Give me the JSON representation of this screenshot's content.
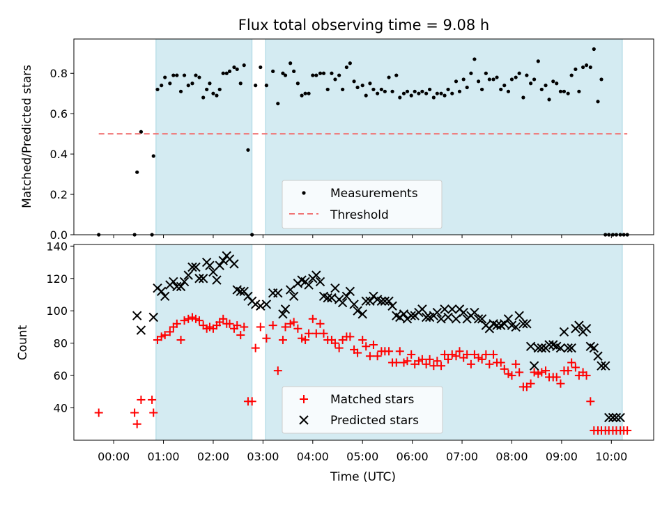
{
  "chart_data": [
    {
      "type": "scatter",
      "title": "Flux total observing time = 9.08 h",
      "ylabel": "Matched/Predicted stars",
      "xlabel": "",
      "xlim": [
        -0.8,
        10.85
      ],
      "ylim": [
        0,
        0.97
      ],
      "yticks": [
        0,
        0.2,
        0.4,
        0.6,
        0.8
      ],
      "ytick_labels": [
        "0.0",
        "0.2",
        "0.4",
        "0.6",
        "0.8"
      ],
      "shaded_spans": [
        [
          0.85,
          2.78
        ],
        [
          3.05,
          10.22
        ]
      ],
      "legend_position": "lower-center",
      "series": [
        {
          "name": "Measurements",
          "marker": "dot",
          "color": "#000000",
          "x": [
            -0.3,
            0.42,
            0.47,
            0.55,
            0.77,
            0.8,
            0.88,
            0.96,
            1.03,
            1.13,
            1.2,
            1.27,
            1.35,
            1.42,
            1.5,
            1.58,
            1.65,
            1.72,
            1.8,
            1.87,
            1.93,
            2.0,
            2.07,
            2.13,
            2.2,
            2.27,
            2.33,
            2.42,
            2.48,
            2.55,
            2.62,
            2.7,
            2.78,
            2.85,
            2.95,
            3.07,
            3.2,
            3.3,
            3.4,
            3.45,
            3.55,
            3.62,
            3.7,
            3.78,
            3.85,
            3.92,
            4.0,
            4.07,
            4.15,
            4.22,
            4.3,
            4.38,
            4.45,
            4.53,
            4.6,
            4.68,
            4.75,
            4.83,
            4.9,
            5.0,
            5.07,
            5.15,
            5.22,
            5.3,
            5.38,
            5.45,
            5.53,
            5.6,
            5.68,
            5.75,
            5.83,
            5.9,
            5.98,
            6.05,
            6.13,
            6.2,
            6.28,
            6.35,
            6.43,
            6.5,
            6.58,
            6.65,
            6.72,
            6.8,
            6.88,
            6.95,
            7.03,
            7.1,
            7.18,
            7.25,
            7.33,
            7.4,
            7.48,
            7.55,
            7.63,
            7.7,
            7.78,
            7.85,
            7.93,
            8.0,
            8.08,
            8.15,
            8.23,
            8.3,
            8.38,
            8.45,
            8.53,
            8.6,
            8.68,
            8.75,
            8.83,
            8.9,
            8.98,
            9.05,
            9.13,
            9.2,
            9.28,
            9.35,
            9.43,
            9.5,
            9.58,
            9.65,
            9.73,
            9.8,
            9.88,
            9.95,
            10.03,
            10.1,
            10.18,
            10.25,
            10.32
          ],
          "y": [
            0.0,
            0.0,
            0.31,
            0.51,
            0.0,
            0.39,
            0.72,
            0.74,
            0.78,
            0.75,
            0.79,
            0.79,
            0.71,
            0.79,
            0.74,
            0.75,
            0.79,
            0.78,
            0.68,
            0.72,
            0.75,
            0.7,
            0.69,
            0.72,
            0.8,
            0.8,
            0.81,
            0.83,
            0.82,
            0.75,
            0.84,
            0.42,
            0.0,
            0.74,
            0.83,
            0.74,
            0.81,
            0.65,
            0.8,
            0.79,
            0.85,
            0.81,
            0.75,
            0.69,
            0.7,
            0.7,
            0.79,
            0.79,
            0.8,
            0.8,
            0.72,
            0.8,
            0.77,
            0.79,
            0.72,
            0.83,
            0.85,
            0.76,
            0.73,
            0.74,
            0.69,
            0.75,
            0.72,
            0.7,
            0.72,
            0.71,
            0.78,
            0.71,
            0.79,
            0.68,
            0.7,
            0.71,
            0.69,
            0.71,
            0.7,
            0.71,
            0.7,
            0.72,
            0.68,
            0.7,
            0.7,
            0.69,
            0.72,
            0.7,
            0.76,
            0.71,
            0.77,
            0.73,
            0.8,
            0.87,
            0.76,
            0.72,
            0.8,
            0.77,
            0.77,
            0.78,
            0.72,
            0.74,
            0.71,
            0.77,
            0.78,
            0.8,
            0.68,
            0.79,
            0.75,
            0.77,
            0.86,
            0.72,
            0.74,
            0.67,
            0.76,
            0.75,
            0.71,
            0.71,
            0.7,
            0.79,
            0.82,
            0.71,
            0.83,
            0.84,
            0.83,
            0.92,
            0.66,
            0.77,
            0.0,
            0.0,
            0.0,
            0.0,
            0.0,
            0.0,
            0.0
          ],
          "size": 2.6
        },
        {
          "name": "Threshold",
          "type": "line",
          "style": "dashed",
          "color": "#f07474",
          "x": [
            -0.3,
            10.32
          ],
          "y": [
            0.5,
            0.5
          ]
        }
      ]
    },
    {
      "type": "scatter",
      "title": "",
      "ylabel": "Count",
      "xlabel": "Time (UTC)",
      "xlim": [
        -0.8,
        10.85
      ],
      "ylim": [
        20,
        141
      ],
      "yticks": [
        40,
        60,
        80,
        100,
        120,
        140
      ],
      "ytick_labels": [
        "40",
        "60",
        "80",
        "100",
        "120",
        "140"
      ],
      "xticks": [
        0,
        1,
        2,
        3,
        4,
        5,
        6,
        7,
        8,
        9,
        10
      ],
      "xtick_labels": [
        "00:00",
        "01:00",
        "02:00",
        "03:00",
        "04:00",
        "05:00",
        "06:00",
        "07:00",
        "08:00",
        "09:00",
        "10:00"
      ],
      "shaded_spans": [
        [
          0.85,
          2.78
        ],
        [
          3.05,
          10.22
        ]
      ],
      "legend_position": "lower-center",
      "series": [
        {
          "name": "Matched stars",
          "marker": "plus",
          "color": "#ff0000",
          "x": [
            -0.3,
            0.42,
            0.47,
            0.55,
            0.77,
            0.8,
            0.88,
            0.96,
            1.03,
            1.13,
            1.2,
            1.27,
            1.35,
            1.42,
            1.5,
            1.58,
            1.65,
            1.72,
            1.8,
            1.87,
            1.93,
            2.0,
            2.07,
            2.13,
            2.2,
            2.27,
            2.33,
            2.42,
            2.48,
            2.55,
            2.62,
            2.7,
            2.78,
            2.85,
            2.95,
            3.07,
            3.2,
            3.3,
            3.4,
            3.45,
            3.55,
            3.62,
            3.7,
            3.78,
            3.85,
            3.92,
            4.0,
            4.07,
            4.15,
            4.22,
            4.3,
            4.38,
            4.45,
            4.53,
            4.6,
            4.68,
            4.75,
            4.83,
            4.9,
            5.0,
            5.07,
            5.15,
            5.22,
            5.3,
            5.38,
            5.45,
            5.53,
            5.6,
            5.68,
            5.75,
            5.83,
            5.9,
            5.98,
            6.05,
            6.13,
            6.2,
            6.28,
            6.35,
            6.43,
            6.5,
            6.58,
            6.65,
            6.72,
            6.8,
            6.88,
            6.95,
            7.03,
            7.1,
            7.18,
            7.25,
            7.33,
            7.4,
            7.48,
            7.55,
            7.63,
            7.7,
            7.78,
            7.85,
            7.93,
            8.0,
            8.08,
            8.15,
            8.23,
            8.3,
            8.38,
            8.45,
            8.53,
            8.6,
            8.68,
            8.75,
            8.83,
            8.9,
            8.98,
            9.05,
            9.13,
            9.2,
            9.28,
            9.35,
            9.43,
            9.5,
            9.58,
            9.65,
            9.73,
            9.8,
            9.88,
            9.95,
            10.03,
            10.1,
            10.18,
            10.25,
            10.32
          ],
          "y": [
            37,
            37,
            30,
            45,
            45,
            37,
            82,
            84,
            85,
            87,
            90,
            92,
            82,
            94,
            95,
            96,
            95,
            94,
            91,
            89,
            90,
            89,
            91,
            93,
            95,
            92,
            92,
            89,
            91,
            85,
            90,
            44,
            44,
            77,
            90,
            83,
            91,
            63,
            82,
            90,
            92,
            93,
            89,
            83,
            82,
            86,
            95,
            86,
            92,
            86,
            82,
            82,
            80,
            77,
            82,
            84,
            84,
            76,
            74,
            82,
            78,
            72,
            79,
            72,
            75,
            75,
            75,
            68,
            68,
            75,
            68,
            69,
            73,
            67,
            69,
            70,
            67,
            70,
            66,
            69,
            66,
            73,
            70,
            73,
            72,
            75,
            71,
            73,
            67,
            73,
            71,
            70,
            73,
            67,
            73,
            68,
            68,
            64,
            61,
            60,
            67,
            62,
            53,
            53,
            55,
            62,
            61,
            62,
            63,
            59,
            59,
            59,
            55,
            63,
            63,
            68,
            65,
            60,
            62,
            60,
            44,
            26,
            26,
            26,
            26,
            26,
            26,
            26,
            26,
            26,
            26
          ],
          "size": 6
        },
        {
          "name": "Predicted stars",
          "marker": "x",
          "color": "#000000",
          "x": [
            0.47,
            0.55,
            0.8,
            0.88,
            0.96,
            1.03,
            1.13,
            1.2,
            1.27,
            1.35,
            1.42,
            1.5,
            1.58,
            1.65,
            1.72,
            1.8,
            1.87,
            1.93,
            2.0,
            2.07,
            2.13,
            2.2,
            2.27,
            2.33,
            2.42,
            2.48,
            2.55,
            2.62,
            2.7,
            2.78,
            2.85,
            2.95,
            3.07,
            3.2,
            3.3,
            3.4,
            3.45,
            3.55,
            3.62,
            3.7,
            3.78,
            3.85,
            3.92,
            4.0,
            4.07,
            4.15,
            4.22,
            4.3,
            4.38,
            4.45,
            4.53,
            4.6,
            4.68,
            4.75,
            4.83,
            4.9,
            5.0,
            5.07,
            5.15,
            5.22,
            5.3,
            5.38,
            5.45,
            5.53,
            5.6,
            5.68,
            5.75,
            5.83,
            5.9,
            5.98,
            6.05,
            6.13,
            6.2,
            6.28,
            6.35,
            6.43,
            6.5,
            6.58,
            6.65,
            6.72,
            6.8,
            6.88,
            6.95,
            7.03,
            7.1,
            7.18,
            7.25,
            7.33,
            7.4,
            7.48,
            7.55,
            7.63,
            7.7,
            7.78,
            7.85,
            7.93,
            8.0,
            8.08,
            8.15,
            8.23,
            8.3,
            8.38,
            8.45,
            8.53,
            8.6,
            8.68,
            8.75,
            8.83,
            8.9,
            8.98,
            9.05,
            9.13,
            9.2,
            9.28,
            9.35,
            9.43,
            9.5,
            9.58,
            9.65,
            9.73,
            9.8,
            9.88,
            9.95,
            10.03,
            10.1,
            10.18
          ],
          "y": [
            97,
            88,
            96,
            114,
            112,
            109,
            116,
            118,
            115,
            115,
            118,
            122,
            127,
            127,
            120,
            120,
            130,
            128,
            124,
            119,
            128,
            131,
            134,
            132,
            129,
            113,
            112,
            112,
            109,
            106,
            104,
            103,
            104,
            111,
            111,
            98,
            101,
            113,
            109,
            117,
            119,
            118,
            116,
            120,
            122,
            118,
            109,
            108,
            108,
            114,
            107,
            105,
            109,
            112,
            104,
            100,
            98,
            106,
            106,
            109,
            107,
            106,
            106,
            106,
            103,
            97,
            96,
            98,
            95,
            97,
            97,
            99,
            101,
            96,
            96,
            97,
            99,
            95,
            101,
            96,
            101,
            95,
            101,
            99,
            95,
            97,
            99,
            95,
            95,
            91,
            89,
            92,
            91,
            91,
            92,
            95,
            91,
            90,
            97,
            92,
            92,
            78,
            66,
            77,
            77,
            77,
            79,
            79,
            78,
            77,
            87,
            77,
            77,
            89,
            91,
            87,
            89,
            78,
            77,
            72,
            66,
            66,
            34,
            34,
            34,
            34
          ],
          "size": 6
        }
      ]
    }
  ],
  "colors": {
    "shade": "#d4ebf2",
    "shade_edge": "#a8d5e2",
    "threshold": "#f07474",
    "matched": "#ff0000",
    "predicted": "#000000"
  }
}
